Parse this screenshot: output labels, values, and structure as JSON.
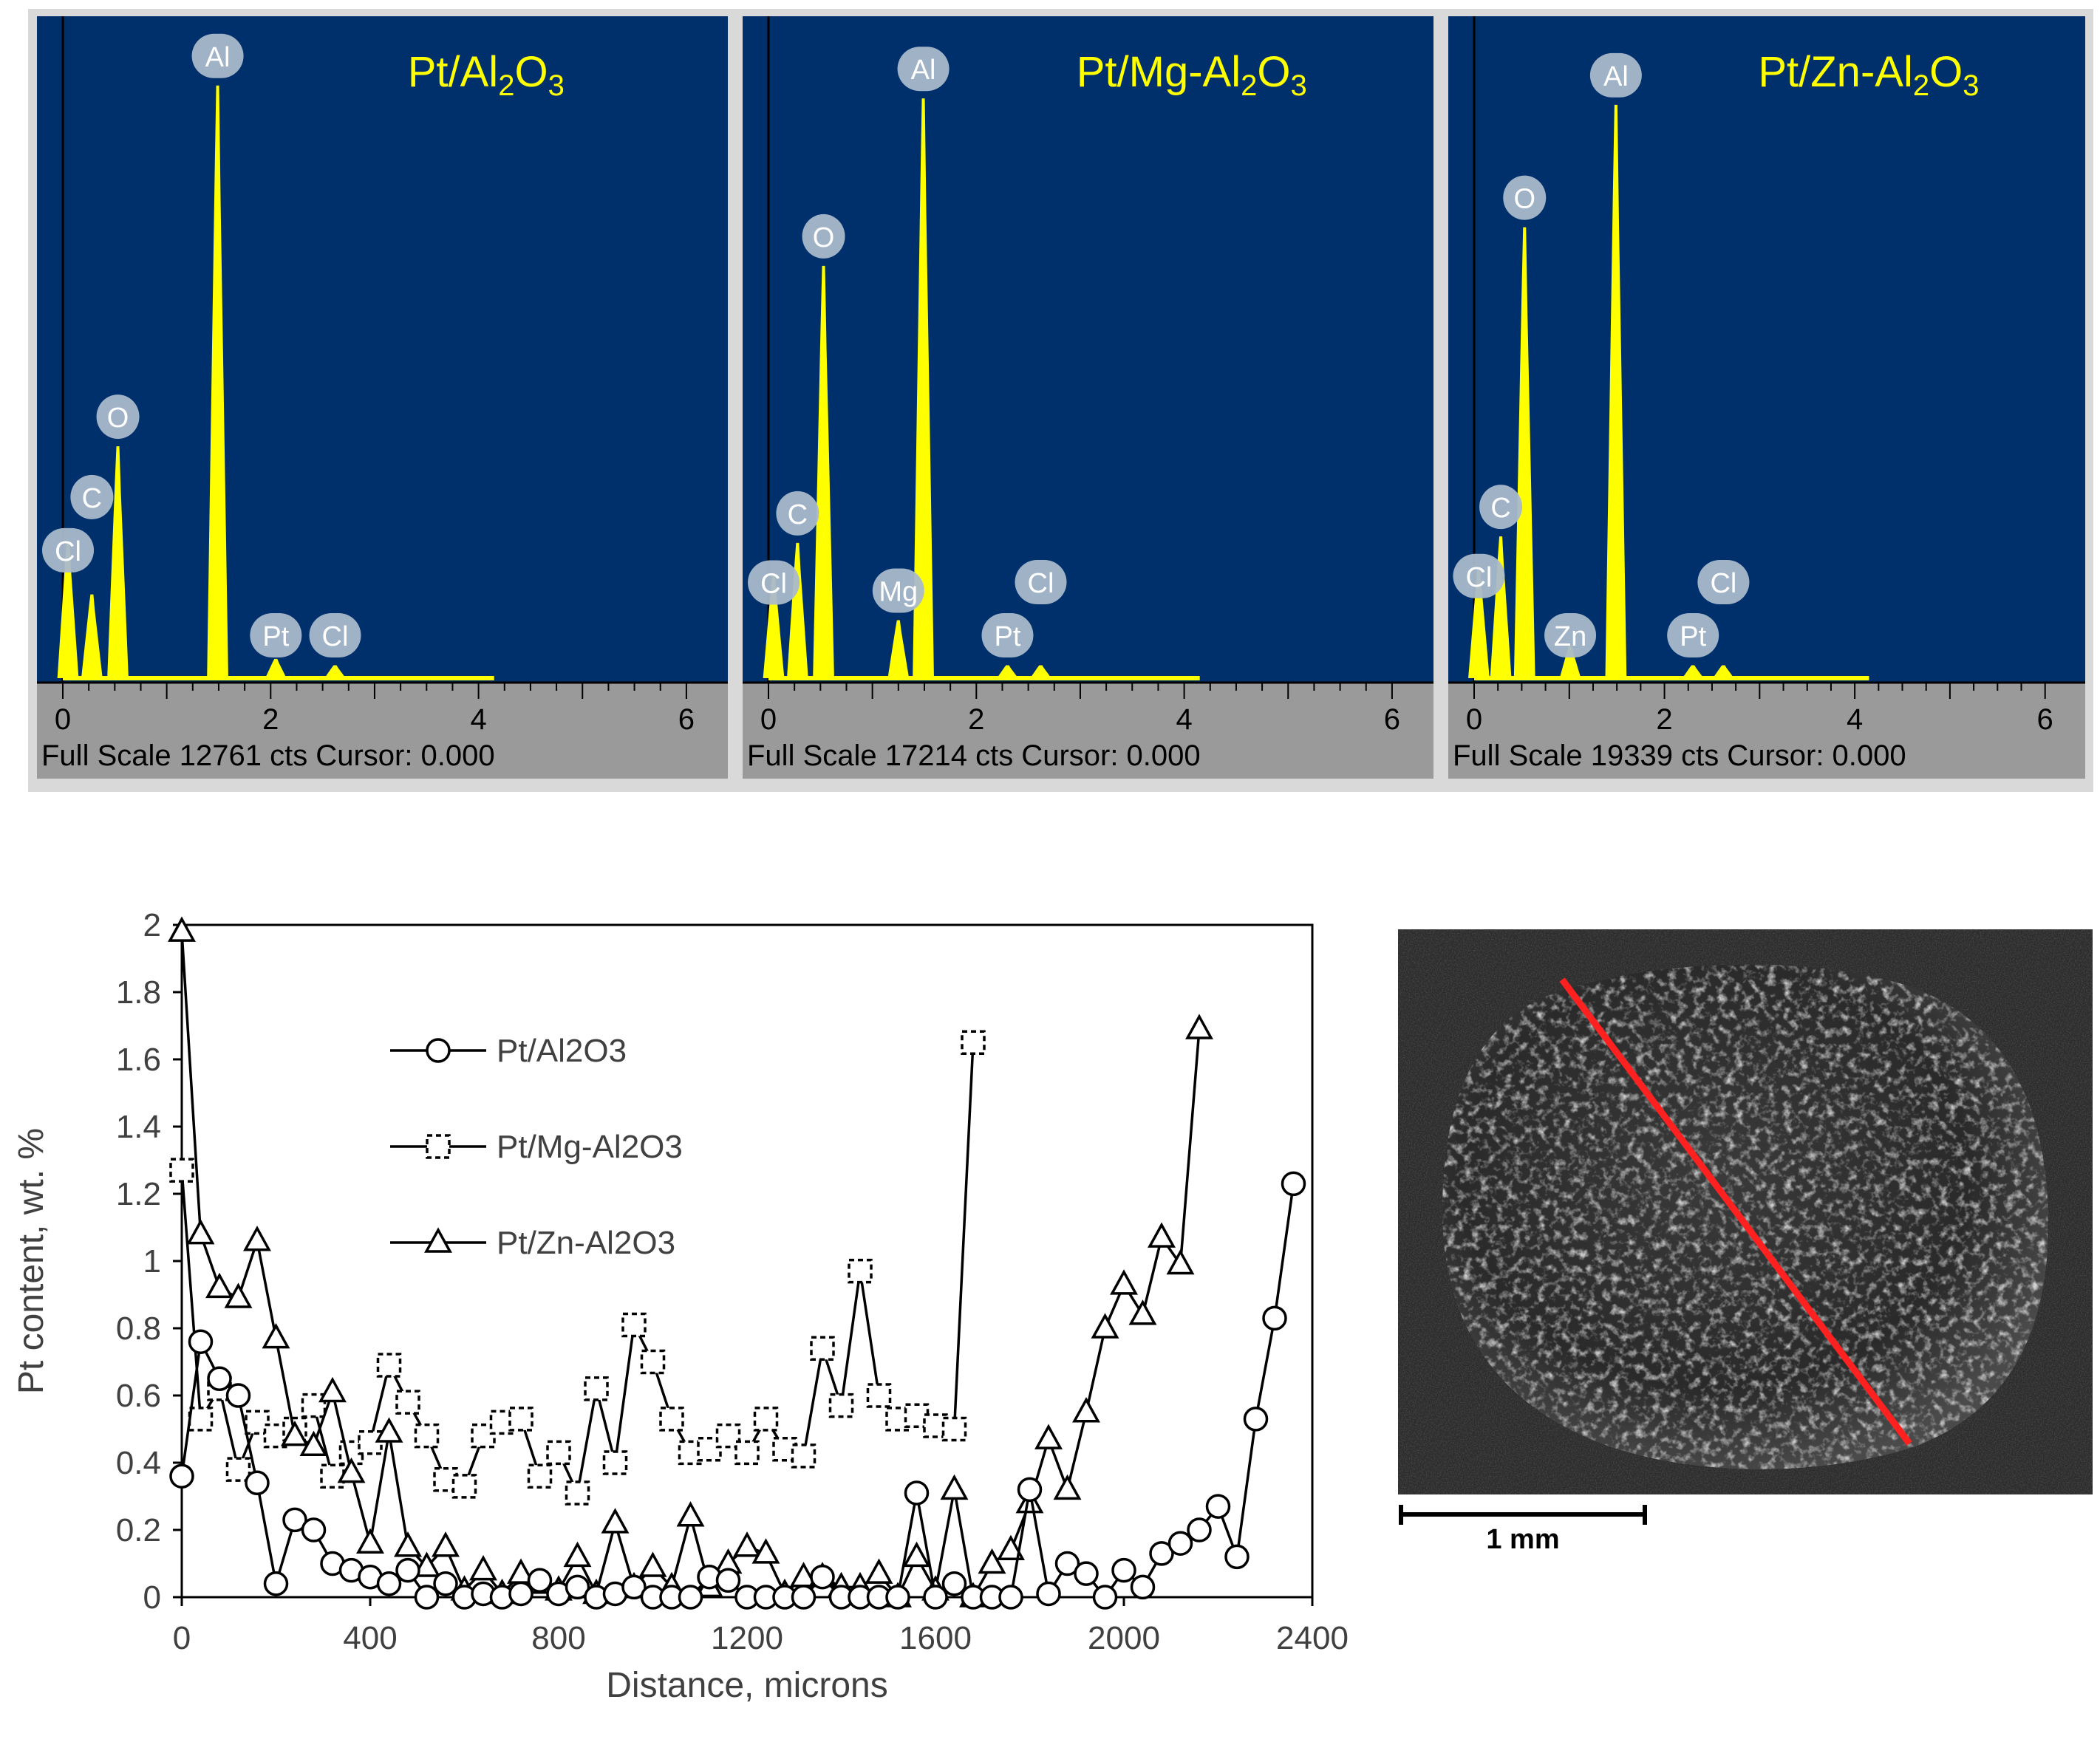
{
  "eds_panels": [
    {
      "sample_label": "Pt/Al2O3",
      "sample_label_parts": [
        "Pt/Al",
        "2",
        "O",
        "3"
      ],
      "axis_ticks": [
        "0",
        "2",
        "4",
        "6"
      ],
      "full_scale": "Full Scale 12761 cts Cursor: 0.000",
      "peaks": [
        {
          "label": "Cl",
          "energy": 0.05,
          "rel_height": 0.21
        },
        {
          "label": "C",
          "energy": 0.28,
          "rel_height": 0.13
        },
        {
          "label": "O",
          "energy": 0.53,
          "rel_height": 0.36
        },
        {
          "label": "Al",
          "energy": 1.49,
          "rel_height": 0.92
        },
        {
          "label": "Pt",
          "energy": 2.05,
          "rel_height": 0.03
        },
        {
          "label": "Cl",
          "energy": 2.62,
          "rel_height": 0.02
        }
      ]
    },
    {
      "sample_label": "Pt/Mg-Al2O3",
      "sample_label_parts": [
        "Pt/Mg-Al",
        "2",
        "O",
        "3"
      ],
      "axis_ticks": [
        "0",
        "2",
        "4",
        "6"
      ],
      "full_scale": "Full Scale 17214 cts Cursor: 0.000",
      "peaks": [
        {
          "label": "Cl",
          "energy": 0.05,
          "rel_height": 0.16
        },
        {
          "label": "C",
          "energy": 0.28,
          "rel_height": 0.21
        },
        {
          "label": "O",
          "energy": 0.53,
          "rel_height": 0.64
        },
        {
          "label": "Mg",
          "energy": 1.25,
          "rel_height": 0.09
        },
        {
          "label": "Al",
          "energy": 1.49,
          "rel_height": 0.9
        },
        {
          "label": "Pt",
          "energy": 2.3,
          "rel_height": 0.02
        },
        {
          "label": "Cl",
          "energy": 2.62,
          "rel_height": 0.02
        }
      ]
    },
    {
      "sample_label": "Pt/Zn-Al2O3",
      "sample_label_parts": [
        "Pt/Zn-Al",
        "2",
        "O",
        "3"
      ],
      "axis_ticks": [
        "0",
        "2",
        "4",
        "6"
      ],
      "full_scale": "Full Scale 19339 cts Cursor: 0.000",
      "peaks": [
        {
          "label": "Cl",
          "energy": 0.05,
          "rel_height": 0.17
        },
        {
          "label": "C",
          "energy": 0.28,
          "rel_height": 0.22
        },
        {
          "label": "O",
          "energy": 0.53,
          "rel_height": 0.7
        },
        {
          "label": "Zn",
          "energy": 1.01,
          "rel_height": 0.05
        },
        {
          "label": "Al",
          "energy": 1.49,
          "rel_height": 0.89
        },
        {
          "label": "Pt",
          "energy": 2.3,
          "rel_height": 0.02
        },
        {
          "label": "Cl",
          "energy": 2.62,
          "rel_height": 0.02
        }
      ]
    }
  ],
  "chart_data": {
    "type": "line",
    "xlabel": "Distance, microns",
    "ylabel": "Pt content, wt. %",
    "xlim": [
      0,
      2400
    ],
    "ylim": [
      0,
      2
    ],
    "x_ticks": [
      "0",
      "400",
      "800",
      "1200",
      "1600",
      "2000",
      "2400"
    ],
    "y_ticks": [
      "0",
      "0.2",
      "0.4",
      "0.6",
      "0.8",
      "1",
      "1.2",
      "1.4",
      "1.6",
      "1.8",
      "2"
    ],
    "legend_position": "upper-left",
    "series": [
      {
        "name": "Pt/Al2O3",
        "marker": "circle",
        "x": [
          0,
          40,
          80,
          120,
          160,
          200,
          240,
          280,
          320,
          360,
          400,
          440,
          480,
          520,
          560,
          600,
          640,
          680,
          720,
          760,
          800,
          840,
          880,
          920,
          960,
          1000,
          1040,
          1080,
          1120,
          1160,
          1200,
          1240,
          1280,
          1320,
          1360,
          1400,
          1440,
          1480,
          1520,
          1560,
          1600,
          1640,
          1680,
          1720,
          1760,
          1800,
          1840,
          1880,
          1920,
          1960,
          2000,
          2040,
          2080,
          2120,
          2160,
          2200,
          2240,
          2280,
          2320,
          2360
        ],
        "y": [
          0.36,
          0.76,
          0.65,
          0.6,
          0.34,
          0.04,
          0.23,
          0.2,
          0.1,
          0.08,
          0.06,
          0.04,
          0.08,
          0.0,
          0.04,
          0.0,
          0.01,
          0.0,
          0.01,
          0.05,
          0.01,
          0.03,
          0.0,
          0.01,
          0.03,
          0.0,
          0.0,
          0.0,
          0.06,
          0.05,
          0.0,
          0.0,
          0.0,
          0.0,
          0.06,
          0.0,
          0.0,
          0.0,
          0.0,
          0.31,
          0.0,
          0.04,
          0.0,
          0.0,
          0.0,
          0.32,
          0.01,
          0.1,
          0.07,
          0.0,
          0.08,
          0.03,
          0.13,
          0.16,
          0.2,
          0.27,
          0.12,
          0.53,
          0.83,
          1.23
        ]
      },
      {
        "name": "Pt/Mg-Al2O3",
        "marker": "square",
        "x": [
          0,
          40,
          80,
          120,
          160,
          200,
          240,
          280,
          320,
          360,
          400,
          440,
          480,
          520,
          560,
          600,
          640,
          680,
          720,
          760,
          800,
          840,
          880,
          920,
          960,
          1000,
          1040,
          1080,
          1120,
          1160,
          1200,
          1240,
          1280,
          1320,
          1360,
          1400,
          1440,
          1480,
          1520,
          1560,
          1600,
          1640,
          1680
        ],
        "y": [
          1.27,
          0.53,
          0.62,
          0.38,
          0.52,
          0.48,
          0.5,
          0.57,
          0.36,
          0.43,
          0.46,
          0.69,
          0.58,
          0.48,
          0.35,
          0.33,
          0.48,
          0.52,
          0.53,
          0.36,
          0.43,
          0.31,
          0.62,
          0.4,
          0.81,
          0.7,
          0.53,
          0.43,
          0.44,
          0.48,
          0.43,
          0.53,
          0.44,
          0.42,
          0.74,
          0.57,
          0.97,
          0.6,
          0.53,
          0.54,
          0.51,
          0.5,
          1.65
        ]
      },
      {
        "name": "Pt/Zn-Al2O3",
        "marker": "triangle",
        "x": [
          0,
          40,
          80,
          120,
          160,
          200,
          240,
          280,
          320,
          360,
          400,
          440,
          480,
          520,
          560,
          600,
          640,
          680,
          720,
          760,
          800,
          840,
          880,
          920,
          960,
          1000,
          1040,
          1080,
          1120,
          1160,
          1200,
          1240,
          1280,
          1320,
          1360,
          1400,
          1440,
          1480,
          1520,
          1560,
          1600,
          1640,
          1680,
          1720,
          1760,
          1800,
          1840,
          1880,
          1920,
          1960,
          2000,
          2040,
          2080,
          2120,
          2160
        ],
        "y": [
          1.98,
          1.08,
          0.92,
          0.89,
          1.06,
          0.77,
          0.48,
          0.45,
          0.61,
          0.37,
          0.16,
          0.49,
          0.15,
          0.09,
          0.15,
          0.02,
          0.08,
          0.01,
          0.07,
          0.04,
          0.02,
          0.12,
          0.01,
          0.22,
          0.03,
          0.09,
          0.03,
          0.24,
          0.03,
          0.1,
          0.15,
          0.13,
          0.01,
          0.06,
          0.06,
          0.03,
          0.03,
          0.07,
          0.0,
          0.12,
          0.02,
          0.32,
          0.0,
          0.1,
          0.14,
          0.28,
          0.47,
          0.32,
          0.55,
          0.8,
          0.93,
          0.84,
          1.07,
          0.99,
          1.69
        ]
      }
    ]
  },
  "sem_image": {
    "scale_bar_label": "1 mm",
    "line_color": "#ff2020"
  },
  "colors": {
    "eds_background": "#00306b",
    "eds_spectrum": "#ffff00",
    "eds_label_text": "#ffff00",
    "eds_axis_strip": "#9a9a9a",
    "peak_badge": "#a9b9cb",
    "chart_line": "#000000"
  }
}
